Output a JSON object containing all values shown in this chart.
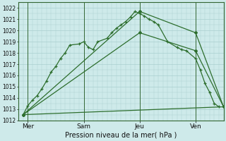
{
  "xlabel": "Pression niveau de la mer( hPa )",
  "background_color": "#ceeaea",
  "grid_color": "#aacfcf",
  "line_color": "#2d6e2d",
  "ylim": [
    1012,
    1022.5
  ],
  "ytick_min": 1012,
  "ytick_max": 1022,
  "ytick_step": 1,
  "xlim": [
    0,
    22
  ],
  "day_labels": [
    "Mer",
    "Sam",
    "Jeu",
    "Ven"
  ],
  "day_positions": [
    1,
    7,
    13,
    19
  ],
  "series1_x": [
    0.5,
    1.0,
    1.5,
    2.0,
    2.5,
    3.0,
    3.5,
    4.0,
    4.5,
    5.0,
    5.5,
    6.5,
    7.0,
    7.5,
    8.0,
    8.5,
    9.5,
    10.0,
    10.5,
    11.0,
    11.5,
    12.0,
    12.5,
    13.0,
    13.5,
    14.0,
    14.5,
    15.0,
    16.0,
    17.0,
    17.5,
    18.0,
    19.0,
    19.5,
    20.0,
    20.5,
    21.0,
    21.5
  ],
  "series1_y": [
    1012.5,
    1013.3,
    1013.8,
    1014.2,
    1014.8,
    1015.5,
    1016.3,
    1016.8,
    1017.5,
    1018.0,
    1018.7,
    1018.8,
    1019.0,
    1018.5,
    1018.3,
    1019.0,
    1019.3,
    1019.8,
    1020.2,
    1020.5,
    1020.8,
    1021.2,
    1021.7,
    1021.5,
    1021.3,
    1021.0,
    1020.8,
    1020.5,
    1019.0,
    1018.5,
    1018.3,
    1018.2,
    1017.5,
    1016.5,
    1015.3,
    1014.5,
    1013.5,
    1013.2
  ],
  "series2_x": [
    0.5,
    22
  ],
  "series2_y": [
    1012.5,
    1013.2
  ],
  "series3_x": [
    0.5,
    13.0,
    19.0,
    22
  ],
  "series3_y": [
    1012.5,
    1019.8,
    1018.2,
    1013.2
  ],
  "series4_x": [
    0.5,
    13.0,
    19.0,
    22
  ],
  "series4_y": [
    1012.5,
    1021.7,
    1019.8,
    1013.2
  ],
  "figsize": [
    3.2,
    2.0
  ],
  "dpi": 100
}
